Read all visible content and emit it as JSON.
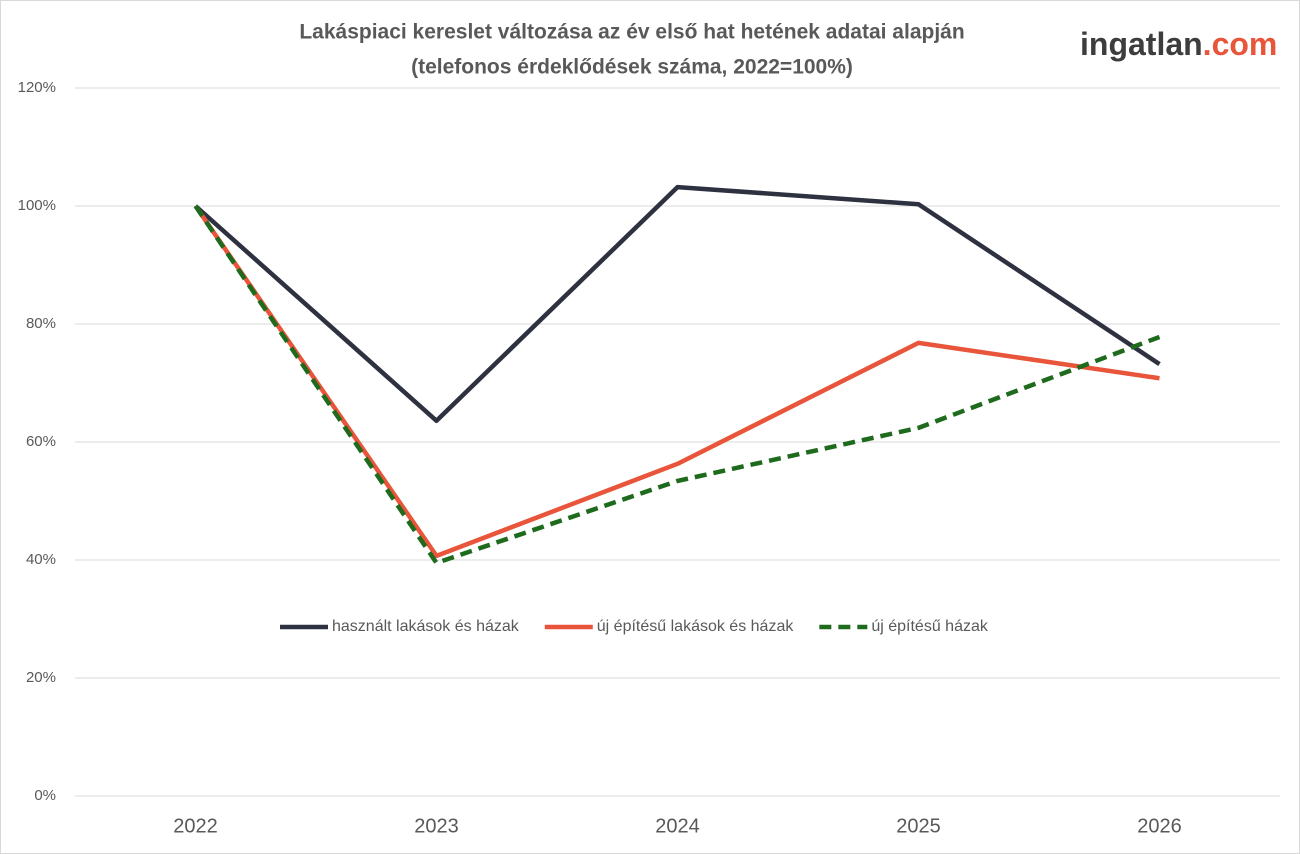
{
  "logo": {
    "name": "ingatlan",
    "tld": ".com"
  },
  "chart_data": {
    "type": "line",
    "title": "Lakáspiaci kereslet változása az év első hat hetének adatai alapján",
    "subtitle": "(telefonos érdeklődések száma, 2022=100%)",
    "categories": [
      "2022",
      "2023",
      "2024",
      "2025",
      "2026"
    ],
    "series": [
      {
        "name": "használt lakások és házak",
        "color": "#2e3140",
        "dash": false,
        "values": [
          100,
          63.6,
          103.2,
          100.3,
          73.2
        ]
      },
      {
        "name": "új építésű lakások és házak",
        "color": "#e8553a",
        "dash": false,
        "values": [
          100,
          40.7,
          56.3,
          76.8,
          70.8
        ]
      },
      {
        "name": "új építésű házak",
        "color": "#1e6b1e",
        "dash": true,
        "values": [
          100,
          39.5,
          53.4,
          62.4,
          77.8
        ]
      }
    ],
    "ylim": [
      0,
      120
    ],
    "yticks": [
      {
        "value": 0,
        "label": "0%"
      },
      {
        "value": 20,
        "label": "20%"
      },
      {
        "value": 40,
        "label": "40%"
      },
      {
        "value": 60,
        "label": "60%"
      },
      {
        "value": 80,
        "label": "80%"
      },
      {
        "value": 100,
        "label": "100%"
      },
      {
        "value": 120,
        "label": "120%"
      }
    ],
    "grid": true
  }
}
